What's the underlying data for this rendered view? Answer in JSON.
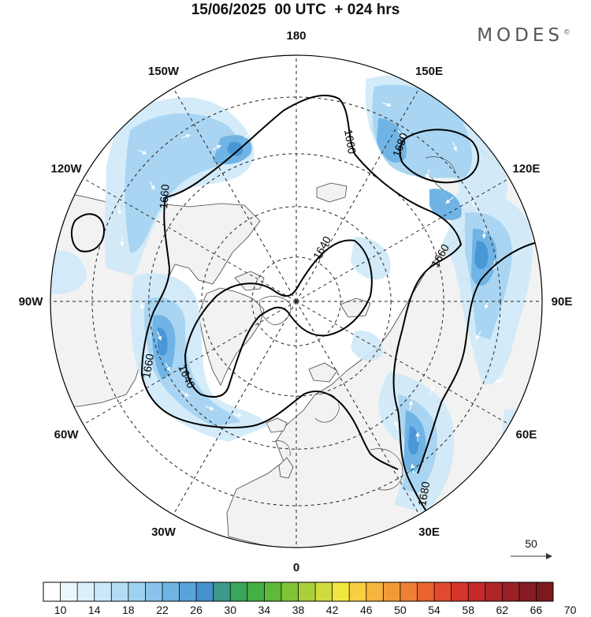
{
  "header": {
    "title": "15/06/2025  00 UTC  + 024 hrs",
    "brand": "MODES",
    "brand_mark": "©"
  },
  "map": {
    "projection": "north-polar-stereographic",
    "longitude_labels": [
      {
        "text": "180",
        "lon": 180
      },
      {
        "text": "150E",
        "lon": 150
      },
      {
        "text": "120E",
        "lon": 120
      },
      {
        "text": "90E",
        "lon": 90
      },
      {
        "text": "60E",
        "lon": 60
      },
      {
        "text": "30E",
        "lon": 30
      },
      {
        "text": "0",
        "lon": 0
      },
      {
        "text": "30W",
        "lon": -30
      },
      {
        "text": "60W",
        "lon": -60
      },
      {
        "text": "90W",
        "lon": -90
      },
      {
        "text": "120W",
        "lon": -120
      },
      {
        "text": "150W",
        "lon": -150
      }
    ],
    "contour_labels": [
      "1660",
      "1680",
      "1660",
      "1640",
      "1660",
      "1660",
      "1640",
      "1680"
    ],
    "colors": {
      "land": "#f2f2f2",
      "ocean": "#ffffff",
      "wind_light": "#cfe9f8",
      "wind_mid": "#a6d4f1",
      "wind_strong": "#6fb4e4",
      "wind_core": "#4a97d6",
      "contour": "#000000",
      "grid": "#222222"
    }
  },
  "vector_legend": {
    "value": "50"
  },
  "colorbar": {
    "colors": [
      "#ffffff",
      "#ecf7fd",
      "#dbf0fb",
      "#c8e7f8",
      "#b4ddf5",
      "#9ed1f0",
      "#87c3ea",
      "#6fb4e3",
      "#59a3db",
      "#4790d0",
      "#3c9a8c",
      "#3aa65a",
      "#44b044",
      "#5fb83a",
      "#82c236",
      "#a9cf3a",
      "#d0dc3e",
      "#f2e540",
      "#f7cf3f",
      "#f6b53c",
      "#f39a38",
      "#ef7f34",
      "#ea6431",
      "#e24a2e",
      "#d6352b",
      "#c42a2a",
      "#b02528",
      "#9b2025",
      "#861b22",
      "#7a1a1f"
    ],
    "labels": [
      "10",
      "14",
      "18",
      "22",
      "26",
      "30",
      "34",
      "38",
      "42",
      "46",
      "50",
      "54",
      "58",
      "62",
      "66",
      "70"
    ]
  }
}
